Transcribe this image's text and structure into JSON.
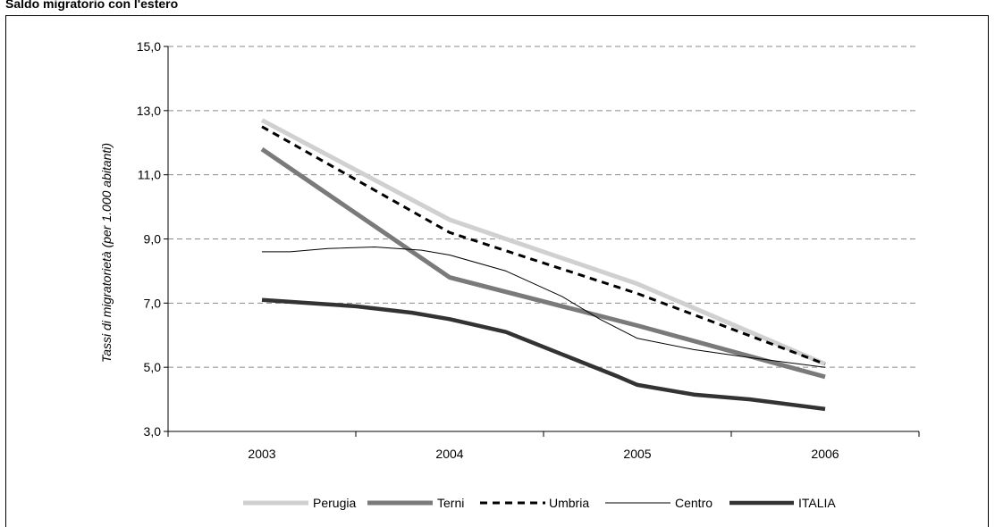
{
  "chart_data": {
    "type": "line",
    "title": "Saldo migratorio con l'estero",
    "ylabel": "Tassi di migratorietà (per 1.000 abitanti)",
    "xlabel": "",
    "x": [
      "2003",
      "2004",
      "2005",
      "2006"
    ],
    "ylim": [
      3.0,
      15.0
    ],
    "yticks": [
      "3,0",
      "5,0",
      "7,0",
      "9,0",
      "11,0",
      "13,0",
      "15,0"
    ],
    "grid": "horizontal dashed",
    "legend_position": "bottom",
    "series": [
      {
        "name": "Perugia",
        "values": [
          12.7,
          9.6,
          7.6,
          5.1
        ],
        "color": "#d0d0d0",
        "style": "thick-light"
      },
      {
        "name": "Terni",
        "values": [
          11.8,
          7.8,
          6.3,
          4.7
        ],
        "color": "#7a7a7a",
        "style": "thick-mid"
      },
      {
        "name": "Umbria",
        "values": [
          12.5,
          9.2,
          7.3,
          5.1
        ],
        "color": "#000000",
        "style": "dashed"
      },
      {
        "name": "Centro",
        "values": [
          8.6,
          8.6,
          5.9,
          5.0
        ],
        "color": "#000000",
        "style": "thin",
        "path": [
          [
            0,
            8.6
          ],
          [
            0.15,
            8.6
          ],
          [
            0.35,
            8.7
          ],
          [
            0.6,
            8.75
          ],
          [
            0.85,
            8.65
          ],
          [
            1.0,
            8.5
          ],
          [
            1.3,
            8.0
          ],
          [
            1.6,
            7.2
          ],
          [
            1.8,
            6.5
          ],
          [
            2.0,
            5.9
          ],
          [
            2.3,
            5.55
          ],
          [
            2.6,
            5.3
          ],
          [
            3.0,
            5.0
          ]
        ]
      },
      {
        "name": "ITALIA",
        "values": [
          7.1,
          6.5,
          4.4,
          3.7
        ],
        "color": "#333333",
        "style": "thick-dark",
        "path": [
          [
            0,
            7.1
          ],
          [
            0.5,
            6.9
          ],
          [
            0.8,
            6.7
          ],
          [
            1.0,
            6.5
          ],
          [
            1.3,
            6.1
          ],
          [
            1.6,
            5.4
          ],
          [
            1.9,
            4.7
          ],
          [
            2.0,
            4.45
          ],
          [
            2.3,
            4.15
          ],
          [
            2.6,
            4.0
          ],
          [
            3.0,
            3.7
          ]
        ]
      }
    ]
  }
}
